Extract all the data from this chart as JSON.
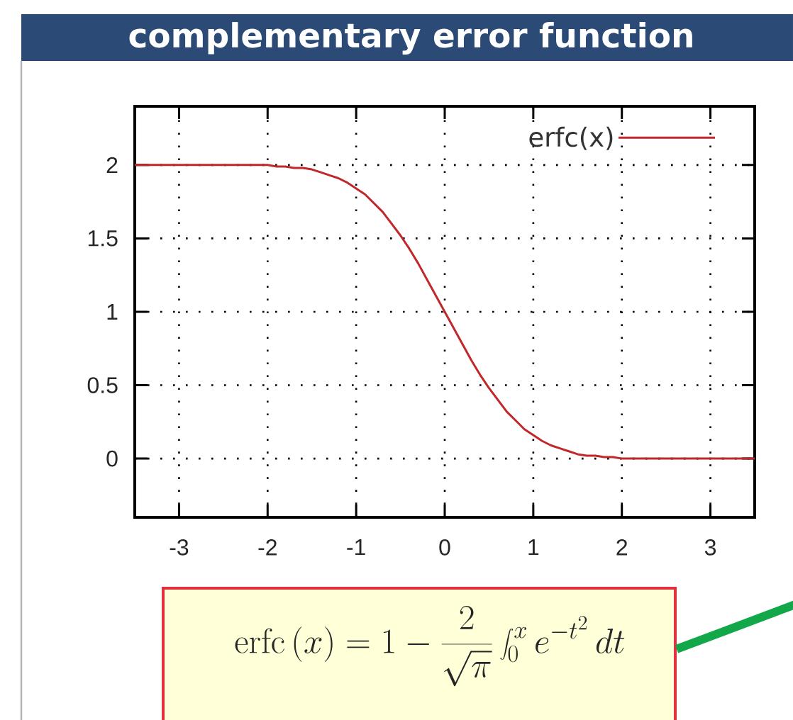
{
  "chart_data": {
    "type": "line",
    "title": "complementary error function",
    "x": [
      -3.5,
      -3.0,
      -2.5,
      -2.0,
      -1.9,
      -1.8,
      -1.7,
      -1.6,
      -1.5,
      -1.4,
      -1.3,
      -1.2,
      -1.1,
      -1.0,
      -0.9,
      -0.8,
      -0.7,
      -0.6,
      -0.5,
      -0.4,
      -0.3,
      -0.2,
      -0.1,
      0.0,
      0.1,
      0.2,
      0.3,
      0.4,
      0.5,
      0.6,
      0.7,
      0.8,
      0.9,
      1.0,
      1.1,
      1.2,
      1.3,
      1.4,
      1.5,
      1.6,
      1.7,
      1.8,
      1.9,
      2.0,
      2.5,
      3.0,
      3.5
    ],
    "series": [
      {
        "name": "erfc(x)",
        "color": "#c0282c",
        "values": [
          2.0,
          2.0,
          2.0,
          2.0,
          1.99,
          1.99,
          1.98,
          1.98,
          1.97,
          1.95,
          1.93,
          1.91,
          1.88,
          1.84,
          1.8,
          1.74,
          1.68,
          1.6,
          1.52,
          1.43,
          1.33,
          1.22,
          1.11,
          1.0,
          0.89,
          0.78,
          0.67,
          0.57,
          0.48,
          0.4,
          0.32,
          0.26,
          0.2,
          0.16,
          0.12,
          0.09,
          0.07,
          0.05,
          0.03,
          0.02,
          0.02,
          0.01,
          0.01,
          0.0,
          0.0,
          0.0,
          0.0
        ]
      }
    ],
    "xlim": [
      -3.5,
      3.5
    ],
    "ylim": [
      -0.4,
      2.4
    ],
    "xticks": [
      -3,
      -2,
      -1,
      0,
      1,
      2,
      3
    ],
    "yticks": [
      0,
      0.5,
      1,
      1.5,
      2
    ],
    "grid": true,
    "legend": "top right",
    "line_style": "solid",
    "annotations": [
      "\\mathrm{erfc}\\,(x) = 1 - \\frac{2}{\\sqrt{\\pi}} \\int_0^x e^{-t^2}\\,dt"
    ]
  }
}
